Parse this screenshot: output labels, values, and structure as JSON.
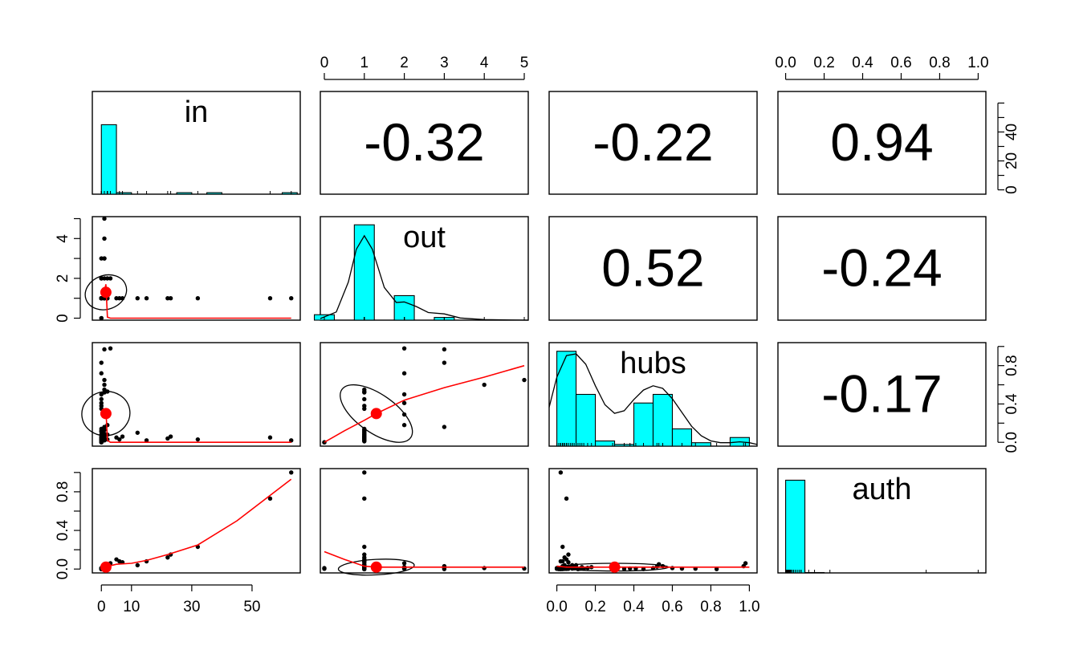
{
  "chart_data": {
    "type": "scatter",
    "variables": [
      "in",
      "out",
      "hubs",
      "auth"
    ],
    "colors": {
      "hist_fill": "#00ffff",
      "smooth": "#ff0000",
      "points": "#000000"
    },
    "correlations": [
      {
        "row": 0,
        "col": 1,
        "label": "-0.32"
      },
      {
        "row": 0,
        "col": 2,
        "label": "-0.22"
      },
      {
        "row": 0,
        "col": 3,
        "label": "0.94"
      },
      {
        "row": 1,
        "col": 2,
        "label": "0.52"
      },
      {
        "row": 1,
        "col": 3,
        "label": "-0.24"
      },
      {
        "row": 2,
        "col": 3,
        "label": "-0.17"
      }
    ],
    "axes": {
      "in": {
        "range": [
          -3,
          66
        ],
        "ticks": [
          0,
          10,
          30,
          50
        ],
        "labels": [
          "0",
          "10",
          "30",
          "50"
        ]
      },
      "out": {
        "range": [
          -0.1,
          5.1
        ],
        "ticks": [
          0,
          1,
          2,
          3,
          4,
          5
        ],
        "labels": [
          "0",
          "1",
          "2",
          "3",
          "4",
          "5"
        ]
      },
      "hubs": {
        "range": [
          -0.04,
          1.04
        ],
        "ticks": [
          0,
          0.2,
          0.4,
          0.6,
          0.8,
          1
        ],
        "labels": [
          "0.0",
          "0.2",
          "0.4",
          "0.6",
          "0.8",
          "1.0"
        ]
      },
      "auth": {
        "range": [
          -0.04,
          1.04
        ],
        "ticks": [
          0,
          0.2,
          0.4,
          0.6,
          0.8,
          1
        ],
        "labels": [
          "0.0",
          "0.2",
          "0.4",
          "0.6",
          "0.8",
          "1.0"
        ]
      },
      "in_hist_y": {
        "range": [
          -3,
          68
        ],
        "ticks": [
          0,
          10,
          20,
          30,
          40,
          50,
          60
        ],
        "labels": [
          "0",
          "",
          "20",
          "",
          "40",
          "",
          ""
        ]
      },
      "left_out": {
        "ticks": [
          0,
          1,
          2,
          3,
          4,
          5
        ],
        "labels": [
          "0",
          "",
          "2",
          "",
          "4",
          ""
        ]
      },
      "right_hubs": {
        "ticks": [
          0,
          0.2,
          0.4,
          0.6,
          0.8,
          1
        ],
        "labels": [
          "0.0",
          "",
          "0.4",
          "",
          "0.8",
          ""
        ]
      },
      "left_auth": {
        "ticks": [
          0,
          0.2,
          0.4,
          0.6,
          0.8,
          1
        ],
        "labels": [
          "0.0",
          "",
          "0.4",
          "",
          "0.8",
          ""
        ]
      },
      "top_auth": {
        "ticks": [
          0,
          0.2,
          0.4,
          0.6,
          0.8,
          1
        ],
        "labels": [
          "0.0",
          "0.2",
          "0.4",
          "0.6",
          "0.8",
          "1.0"
        ]
      }
    },
    "histograms": {
      "in": {
        "breaks": [
          0,
          5,
          10,
          15,
          20,
          25,
          30,
          35,
          40,
          45,
          50,
          55,
          60,
          65
        ],
        "counts": [
          46,
          1,
          0,
          0,
          0,
          1,
          0,
          1,
          0,
          0,
          0,
          0,
          1
        ]
      },
      "out": {
        "breaks": [
          -0.25,
          0.25,
          0.75,
          1.25,
          1.75,
          2.25,
          2.75,
          3.25,
          3.75,
          4.25,
          4.75,
          5.25
        ],
        "counts": [
          2,
          0,
          35,
          0,
          9,
          0,
          1,
          0,
          0,
          0,
          0
        ]
      },
      "hubs": {
        "breaks": [
          0,
          0.1,
          0.2,
          0.3,
          0.4,
          0.5,
          0.6,
          0.7,
          0.8,
          0.9,
          1.0
        ],
        "counts": [
          11,
          6,
          0.6,
          0.2,
          5,
          6,
          2,
          0.4,
          0,
          1
        ]
      },
      "auth": {
        "breaks": [
          0,
          0.1,
          0.2,
          0.3,
          0.4,
          0.5,
          0.6,
          0.7,
          0.8,
          0.9,
          1.0
        ],
        "counts": [
          48,
          0.2,
          0,
          0,
          0,
          0,
          0,
          0,
          0,
          0
        ]
      }
    },
    "densities": {
      "out": {
        "x": [
          -0.1,
          0.3,
          0.6,
          0.8,
          1.0,
          1.2,
          1.5,
          1.8,
          2.0,
          2.3,
          2.6,
          3.0,
          3.4,
          4.0,
          4.5,
          5.1
        ],
        "y": [
          0.6,
          3,
          14,
          26,
          31,
          26,
          12,
          6.5,
          6.7,
          5,
          2.8,
          2.3,
          0.8,
          0.2,
          0.1,
          0
        ]
      },
      "hubs": {
        "x": [
          -0.04,
          0,
          0.05,
          0.1,
          0.15,
          0.2,
          0.25,
          0.3,
          0.35,
          0.4,
          0.45,
          0.5,
          0.55,
          0.6,
          0.65,
          0.7,
          0.75,
          0.8,
          0.85,
          0.9,
          0.95,
          1.0,
          1.04
        ],
        "y": [
          4.5,
          8,
          10.5,
          10.7,
          9.5,
          7,
          4.8,
          3.8,
          4.1,
          5.4,
          6.5,
          7,
          6.7,
          5.5,
          3.9,
          2.3,
          1.2,
          0.6,
          0.4,
          0.4,
          0.5,
          0.4,
          0.2
        ]
      }
    },
    "data": {
      "in": [
        0,
        0,
        0,
        0,
        0,
        0,
        0,
        0,
        0,
        0,
        0,
        0,
        0,
        0,
        0,
        0,
        0,
        0,
        0,
        0,
        0,
        0,
        1,
        1,
        1,
        1,
        1,
        1,
        1,
        1,
        1,
        1,
        1,
        1,
        1,
        1,
        1,
        2,
        2,
        2,
        2,
        3,
        5,
        6,
        7,
        12,
        15,
        22,
        23,
        32,
        56,
        63
      ],
      "out": [
        1,
        1,
        1,
        2,
        1,
        1,
        1,
        3,
        2,
        1,
        1,
        1,
        1,
        1,
        1,
        0,
        1,
        1,
        2,
        1,
        0,
        1,
        4,
        1,
        5,
        3,
        1,
        1,
        1,
        3,
        1,
        1,
        1,
        1,
        1,
        2,
        1,
        2,
        1,
        1,
        1,
        2,
        1,
        1,
        1,
        1,
        1,
        1,
        1,
        1,
        1,
        1
      ],
      "hubs": [
        0.03,
        0.02,
        0.06,
        0.5,
        0.11,
        0.04,
        0.12,
        0.83,
        0.41,
        0.05,
        0.03,
        0.35,
        0.08,
        0.02,
        0.14,
        0.0,
        0.45,
        0.05,
        0.72,
        0.01,
        0.0,
        0.38,
        0.6,
        0.13,
        0.65,
        0.97,
        0.04,
        0.09,
        0.03,
        0.16,
        0.52,
        0.07,
        0.55,
        0.02,
        0.06,
        0.29,
        0.04,
        0.18,
        0.53,
        0.03,
        0.08,
        0.98,
        0.05,
        0.03,
        0.06,
        0.1,
        0.02,
        0.04,
        0.06,
        0.03,
        0.05,
        0.02
      ],
      "auth": [
        0.005,
        0,
        0.003,
        0.01,
        0,
        0.002,
        0.004,
        0,
        0.006,
        0.003,
        0,
        0.002,
        0.005,
        0,
        0.003,
        0.01,
        0,
        0.002,
        0.004,
        0,
        0.003,
        0.006,
        0.01,
        0.02,
        0.005,
        0.03,
        0.015,
        0.008,
        0.02,
        0.012,
        0.025,
        0.018,
        0.03,
        0.01,
        0.02,
        0.015,
        0.04,
        0.02,
        0.05,
        0.03,
        0.04,
        0.06,
        0.1,
        0.08,
        0.07,
        0.04,
        0.08,
        0.12,
        0.15,
        0.23,
        0.73,
        1.0
      ]
    },
    "ellipses": {
      "in_out": {
        "cx": 1.5,
        "cy": 1.3,
        "rx": 7,
        "ry": 0.85,
        "angle": -20
      },
      "in_hubs": {
        "cx": 1.5,
        "cy": 0.3,
        "rx": 8,
        "ry": 0.23,
        "angle": -10
      },
      "out_hubs": {
        "cx": 1.3,
        "cy": 0.3,
        "rx": 1.05,
        "ry": 0.2,
        "angle": 35
      },
      "out_auth": {
        "cx": 1.3,
        "cy": 0.02,
        "rx": 0.95,
        "ry": 0.08,
        "angle": -3
      },
      "hubs_auth": {
        "cx": 0.3,
        "cy": 0.02,
        "rx": 0.28,
        "ry": 0.04,
        "angle": 0
      }
    },
    "smooths": {
      "in_out": {
        "x": [
          0,
          1,
          1.5,
          2,
          3,
          10,
          30,
          63
        ],
        "y": [
          1.3,
          1.3,
          1.7,
          0.05,
          0,
          0,
          0,
          0
        ]
      },
      "in_hubs": {
        "x": [
          0,
          1,
          1.5,
          2,
          3,
          10,
          30,
          63
        ],
        "y": [
          0.3,
          0.3,
          0.35,
          0.02,
          0,
          0,
          0,
          0
        ]
      },
      "in_auth": {
        "x": [
          0,
          1,
          5,
          10,
          15,
          22,
          32,
          45,
          63
        ],
        "y": [
          0.01,
          0.02,
          0.05,
          0.06,
          0.09,
          0.15,
          0.25,
          0.5,
          0.93
        ]
      },
      "out_hubs": {
        "x": [
          0,
          0.5,
          1,
          1.3,
          2,
          3,
          4,
          5
        ],
        "y": [
          0.0,
          0.12,
          0.23,
          0.3,
          0.44,
          0.57,
          0.68,
          0.8
        ]
      },
      "out_auth": {
        "x": [
          0,
          0.5,
          1,
          1.3,
          2,
          3,
          4,
          5
        ],
        "y": [
          0.18,
          0.1,
          0.03,
          0.02,
          0.02,
          0.02,
          0.02,
          0.02
        ]
      },
      "hubs_auth": {
        "x": [
          0,
          0.05,
          0.1,
          0.3,
          0.5,
          0.7,
          1.0
        ],
        "y": [
          0.03,
          0.02,
          0.02,
          0.02,
          0.02,
          0.02,
          0.02
        ]
      }
    },
    "means": {
      "in": 1.5,
      "out": 1.3,
      "hubs": 0.3,
      "auth": 0.02
    }
  }
}
